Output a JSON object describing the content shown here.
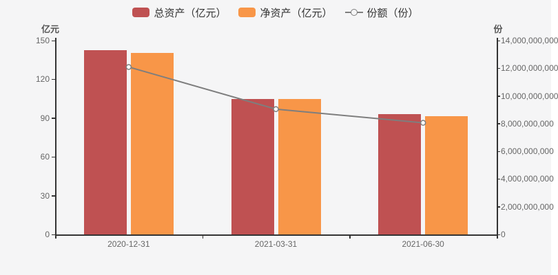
{
  "chart_data": {
    "type": "bar+line",
    "title": "",
    "categories": [
      "2020-12-31",
      "2021-03-31",
      "2021-06-30"
    ],
    "series": [
      {
        "key": "total-assets",
        "name": "总资产（亿元）",
        "type": "bar",
        "axis": "left",
        "color": "#bf5152",
        "values": [
          142.8,
          105.0,
          93.1
        ]
      },
      {
        "key": "net-assets",
        "name": "净资产（亿元）",
        "type": "bar",
        "axis": "left",
        "color": "#f89648",
        "values": [
          140.3,
          104.8,
          91.3
        ]
      },
      {
        "key": "shares",
        "name": "份额（份）",
        "type": "line",
        "axis": "right",
        "color": "#7e7e7e",
        "values": [
          12090000000,
          9050000000,
          8060000000
        ]
      }
    ],
    "left_axis": {
      "name": "亿元",
      "min": 0,
      "max": 150,
      "tick_labels": [
        "0",
        "30",
        "60",
        "90",
        "120",
        "150"
      ]
    },
    "right_axis": {
      "name": "份",
      "min": 0,
      "max": 14000000000,
      "tick_labels": [
        "0",
        "2,000,000,000",
        "4,000,000,000",
        "6,000,000,000",
        "8,000,000,000",
        "10,000,000,000",
        "12,000,000,000",
        "14,000,000,000"
      ]
    },
    "grid": false,
    "legend_position": "top",
    "background_color": "#f5f5f6",
    "axis_line_color": "#333333",
    "tick_text_color": "#666666",
    "line_marker_fill": "#ffffff"
  },
  "legend": {
    "items": [
      {
        "key": "total-assets",
        "label": "总资产（亿元）",
        "color": "#bf5152",
        "marker": "bar-swatch"
      },
      {
        "key": "net-assets",
        "label": "净资产（亿元）",
        "color": "#f89648",
        "marker": "bar-swatch"
      },
      {
        "key": "shares",
        "label": "份额（份）",
        "color": "#7e7e7e",
        "marker": "line-marker"
      }
    ]
  }
}
